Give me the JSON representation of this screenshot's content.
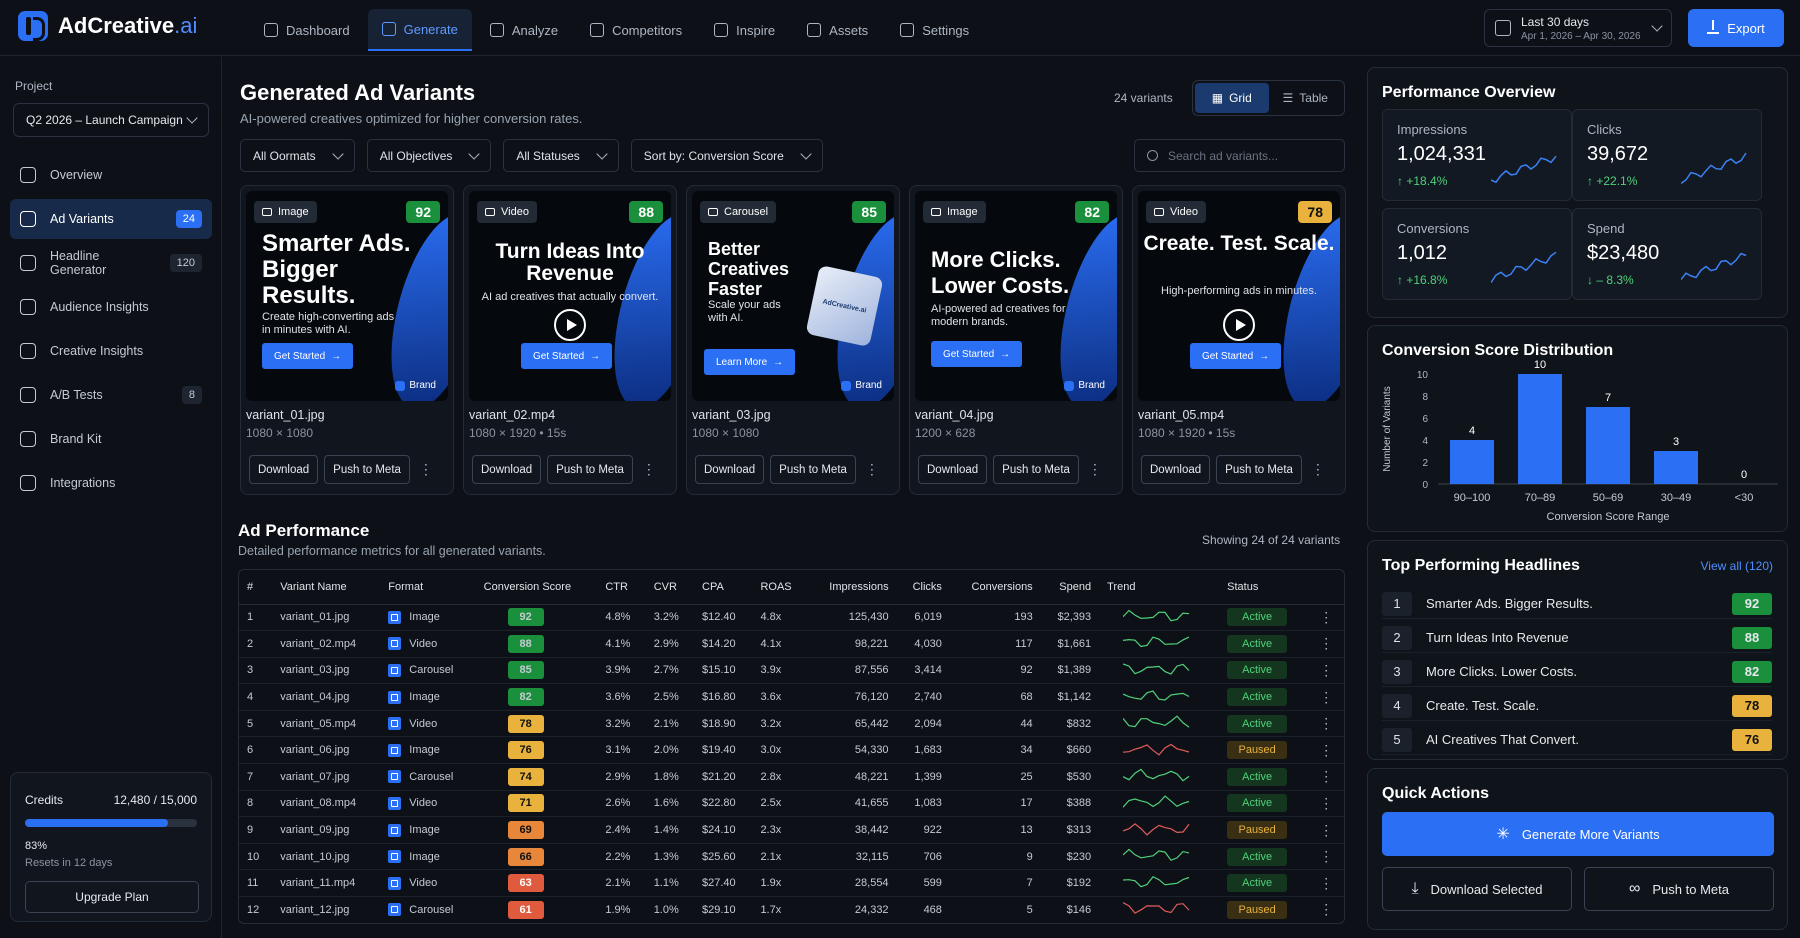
{
  "app": {
    "name": "AdCreative",
    "name_suffix": ".ai"
  },
  "nav": [
    {
      "label": "Dashboard"
    },
    {
      "label": "Generate",
      "active": true
    },
    {
      "label": "Analyze"
    },
    {
      "label": "Competitors"
    },
    {
      "label": "Inspire"
    },
    {
      "label": "Assets"
    },
    {
      "label": "Settings"
    }
  ],
  "date_range": {
    "label": "Last 30 days",
    "range": "Apr 1, 2026 – Apr 30, 2026"
  },
  "export_label": "Export",
  "sidebar": {
    "project_label": "Project",
    "project_value": "Q2 2026 – Launch Campaign",
    "items": [
      {
        "label": "Overview",
        "badge": ""
      },
      {
        "label": "Ad Variants",
        "badge": "24",
        "active": true
      },
      {
        "label": "Headline Generator",
        "badge": "120"
      },
      {
        "label": "Audience Insights",
        "badge": ""
      },
      {
        "label": "Creative Insights",
        "badge": ""
      },
      {
        "label": "A/B Tests",
        "badge": "8"
      },
      {
        "label": "Brand Kit",
        "badge": ""
      },
      {
        "label": "Integrations",
        "badge": ""
      }
    ],
    "credits": {
      "label": "Credits",
      "value": "12,480 / 15,000",
      "percent": "83%",
      "fraction": 0.83,
      "reset": "Resets in 12 days",
      "upgrade": "Upgrade Plan"
    }
  },
  "main": {
    "title": "Generated Ad Variants",
    "subtitle": "AI-powered creatives optimized for higher conversion rates.",
    "variants_count": "24 variants",
    "view_grid": "Grid",
    "view_table": "Table",
    "filters": [
      "All Oormats",
      "All Objectives",
      "All Statuses",
      "Sort by: Conversion Score"
    ],
    "search_placeholder": "Search ad variants..."
  },
  "cards": [
    {
      "format": "Image",
      "score": "92",
      "headline": "Smarter Ads. Bigger Results.",
      "desc": "Create high-converting ads in minutes with AI.",
      "cta": "Get Started",
      "brand": "Brand",
      "file": "variant_01.jpg",
      "dims": "1080 × 1080",
      "color": "green"
    },
    {
      "format": "Video",
      "score": "88",
      "headline": "Turn Ideas Into Revenue",
      "desc": "AI ad creatives that actually convert.",
      "cta": "Get Started",
      "brand": "",
      "file": "variant_02.mp4",
      "dims": "1080 × 1920 • 15s",
      "color": "green"
    },
    {
      "format": "Carousel",
      "score": "85",
      "headline": "Better Creatives Faster",
      "desc": "Scale your ads with AI.",
      "cta": "Learn More",
      "brand": "Brand",
      "file": "variant_03.jpg",
      "dims": "1080 × 1080",
      "color": "green",
      "cube": "AdCreative.ai"
    },
    {
      "format": "Image",
      "score": "82",
      "headline": "More Clicks. Lower Costs.",
      "desc": "AI-powered ad creatives for modern brands.",
      "cta": "Get Started",
      "brand": "Brand",
      "file": "variant_04.jpg",
      "dims": "1200 × 628",
      "color": "green"
    },
    {
      "format": "Video",
      "score": "78",
      "headline": "Create. Test. Scale.",
      "desc": "High-performing ads in minutes.",
      "cta": "Get Started",
      "brand": "",
      "file": "variant_05.mp4",
      "dims": "1080 × 1920 • 15s",
      "color": "yellow"
    }
  ],
  "card_actions": {
    "download": "Download",
    "push": "Push to Meta"
  },
  "performance": {
    "title": "Ad Performance",
    "subtitle": "Detailed performance metrics for all generated variants.",
    "count": "Showing 24 of 24 variants",
    "columns": [
      "#",
      "Variant Name",
      "Format",
      "Conversion Score",
      "CTR",
      "CVR",
      "CPA",
      "ROAS",
      "Impressions",
      "Clicks",
      "Conversions",
      "Spend",
      "Trend",
      "Status"
    ],
    "rows": [
      [
        "1",
        "variant_01.jpg",
        "Image",
        "92",
        "4.8%",
        "3.2%",
        "$12.40",
        "4.8x",
        "125,430",
        "6,019",
        "193",
        "$2,393",
        "Active"
      ],
      [
        "2",
        "variant_02.mp4",
        "Video",
        "88",
        "4.1%",
        "2.9%",
        "$14.20",
        "4.1x",
        "98,221",
        "4,030",
        "117",
        "$1,661",
        "Active"
      ],
      [
        "3",
        "variant_03.jpg",
        "Carousel",
        "85",
        "3.9%",
        "2.7%",
        "$15.10",
        "3.9x",
        "87,556",
        "3,414",
        "92",
        "$1,389",
        "Active"
      ],
      [
        "4",
        "variant_04.jpg",
        "Image",
        "82",
        "3.6%",
        "2.5%",
        "$16.80",
        "3.6x",
        "76,120",
        "2,740",
        "68",
        "$1,142",
        "Active"
      ],
      [
        "5",
        "variant_05.mp4",
        "Video",
        "78",
        "3.2%",
        "2.1%",
        "$18.90",
        "3.2x",
        "65,442",
        "2,094",
        "44",
        "$832",
        "Active"
      ],
      [
        "6",
        "variant_06.jpg",
        "Image",
        "76",
        "3.1%",
        "2.0%",
        "$19.40",
        "3.0x",
        "54,330",
        "1,683",
        "34",
        "$660",
        "Paused"
      ],
      [
        "7",
        "variant_07.jpg",
        "Carousel",
        "74",
        "2.9%",
        "1.8%",
        "$21.20",
        "2.8x",
        "48,221",
        "1,399",
        "25",
        "$530",
        "Active"
      ],
      [
        "8",
        "variant_08.mp4",
        "Video",
        "71",
        "2.6%",
        "1.6%",
        "$22.80",
        "2.5x",
        "41,655",
        "1,083",
        "17",
        "$388",
        "Active"
      ],
      [
        "9",
        "variant_09.jpg",
        "Image",
        "69",
        "2.4%",
        "1.4%",
        "$24.10",
        "2.3x",
        "38,442",
        "922",
        "13",
        "$313",
        "Paused"
      ],
      [
        "10",
        "variant_10.jpg",
        "Image",
        "66",
        "2.2%",
        "1.3%",
        "$25.60",
        "2.1x",
        "32,115",
        "706",
        "9",
        "$230",
        "Active"
      ],
      [
        "11",
        "variant_11.mp4",
        "Video",
        "63",
        "2.1%",
        "1.1%",
        "$27.40",
        "1.9x",
        "28,554",
        "599",
        "7",
        "$192",
        "Active"
      ],
      [
        "12",
        "variant_12.jpg",
        "Carousel",
        "61",
        "1.9%",
        "1.0%",
        "$29.10",
        "1.7x",
        "24,332",
        "468",
        "5",
        "$146",
        "Paused"
      ]
    ]
  },
  "overview": {
    "title": "Performance Overview",
    "kpis": [
      {
        "label": "Impressions",
        "value": "1,024,331",
        "change": "+18.4%",
        "dir": "up"
      },
      {
        "label": "Clicks",
        "value": "39,672",
        "change": "+22.1%",
        "dir": "up"
      },
      {
        "label": "Conversions",
        "value": "1,012",
        "change": "+16.8%",
        "dir": "up"
      },
      {
        "label": "Spend",
        "value": "$23,480",
        "change": "– 8.3%",
        "dir": "down"
      }
    ]
  },
  "chart_data": {
    "type": "bar",
    "title": "Conversion Score Distribution",
    "categories": [
      "90–100",
      "70–89",
      "50–69",
      "30–49",
      "<30"
    ],
    "values": [
      4,
      10,
      7,
      3,
      0
    ],
    "xlabel": "Conversion Score Range",
    "ylabel": "Number of Variants",
    "ylim": [
      0,
      10
    ],
    "yticks": [
      0,
      2,
      4,
      6,
      8,
      10
    ]
  },
  "headlines": {
    "title": "Top Performing Headlines",
    "view_all": "View all (120)",
    "items": [
      {
        "n": "1",
        "text": "Smarter Ads. Bigger Results.",
        "score": "92",
        "color": "green"
      },
      {
        "n": "2",
        "text": "Turn Ideas Into Revenue",
        "score": "88",
        "color": "green"
      },
      {
        "n": "3",
        "text": "More Clicks. Lower Costs.",
        "score": "82",
        "color": "green"
      },
      {
        "n": "4",
        "text": "Create. Test. Scale.",
        "score": "78",
        "color": "yellow"
      },
      {
        "n": "5",
        "text": "AI Creatives That Convert.",
        "score": "76",
        "color": "yellow"
      }
    ]
  },
  "quick_actions": {
    "title": "Quick Actions",
    "generate": "Generate More Variants",
    "download": "Download Selected",
    "push": "Push to Meta"
  }
}
